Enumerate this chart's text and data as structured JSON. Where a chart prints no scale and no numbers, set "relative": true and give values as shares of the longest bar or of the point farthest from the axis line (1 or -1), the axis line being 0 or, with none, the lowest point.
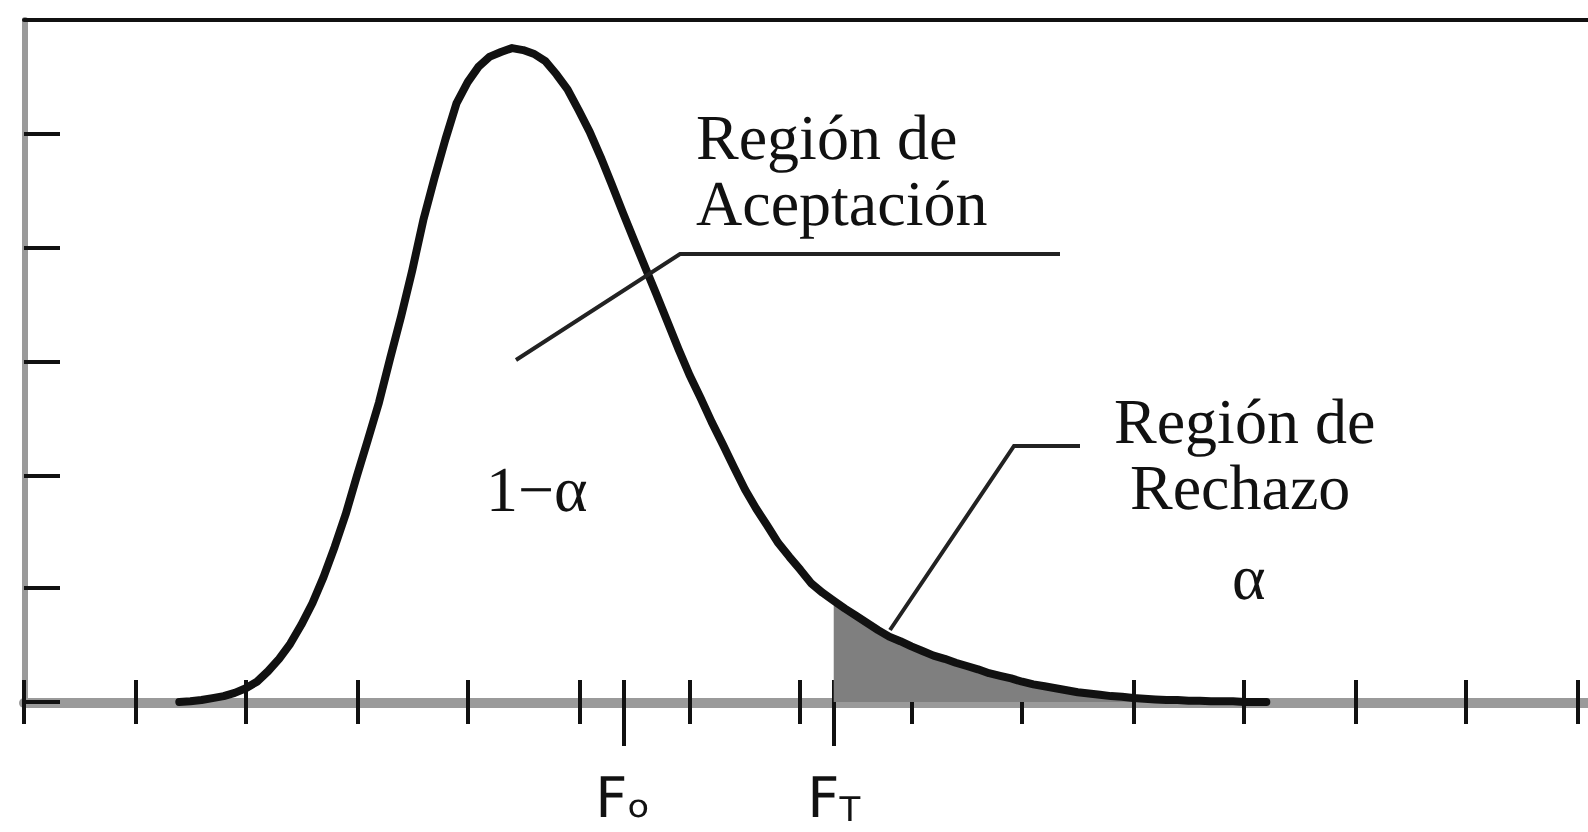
{
  "chart_data": {
    "type": "line",
    "relative": true,
    "tick_labels": "x",
    "categories": [
      null,
      null,
      null,
      null,
      null,
      null,
      null,
      null,
      null,
      null,
      null,
      null,
      null,
      null,
      null,
      null,
      null,
      null,
      null,
      null,
      null,
      null,
      null,
      null,
      null,
      null,
      null,
      null,
      null,
      null,
      null,
      null,
      null,
      null,
      null,
      null,
      null,
      null,
      null,
      null,
      null,
      null,
      null,
      null,
      null,
      null,
      null,
      null,
      null,
      null,
      null,
      null,
      null,
      null,
      "Fₒ",
      null,
      null,
      null,
      null,
      null,
      null,
      null,
      null,
      null,
      null,
      null,
      null,
      null,
      null,
      null,
      null,
      null,
      null,
      "F$_{T}$",
      null,
      null,
      null,
      null,
      null,
      null,
      null,
      null,
      null,
      null,
      null,
      null,
      null,
      null,
      null,
      null,
      null,
      null,
      null,
      null,
      null,
      null,
      null,
      null,
      null,
      null,
      null,
      null,
      null,
      null,
      null,
      null,
      null,
      null,
      null,
      null,
      null,
      null,
      null,
      null,
      null,
      null,
      null,
      null,
      null,
      null,
      null,
      null,
      null,
      null,
      null,
      null,
      null,
      null,
      null,
      null,
      null,
      null,
      null,
      null,
      null,
      null,
      null,
      null,
      null,
      null,
      null,
      null
    ],
    "series": [
      {
        "color": "#111111",
        "values": [
          null,
          null,
          null,
          null,
          null,
          null,
          null,
          null,
          null,
          null,
          null,
          null,
          null,
          null,
          0,
          0.001,
          0.003,
          0.006,
          0.009,
          0.014,
          0.021,
          0.031,
          0.047,
          0.066,
          0.089,
          0.118,
          0.151,
          0.191,
          0.237,
          0.287,
          0.345,
          0.401,
          0.458,
          0.525,
          0.59,
          0.66,
          0.737,
          0.801,
          0.861,
          0.916,
          0.948,
          0.972,
          0.987,
          0.994,
          1,
          0.997,
          0.991,
          0.98,
          0.96,
          0.937,
          0.905,
          0.872,
          0.833,
          0.791,
          0.748,
          0.706,
          0.665,
          0.624,
          0.582,
          0.54,
          0.5,
          0.465,
          0.428,
          0.394,
          0.359,
          0.325,
          0.296,
          0.27,
          0.243,
          0.222,
          0.202,
          0.181,
          0.167,
          0.155,
          0.143,
          0.132,
          0.121,
          0.11,
          0.1,
          0.093,
          0.085,
          0.078,
          0.071,
          0.066,
          0.06,
          0.055,
          0.05,
          0.044,
          0.04,
          0.036,
          0.031,
          0.027,
          0.024,
          0.021,
          0.018,
          0.015,
          0.013,
          0.011,
          0.009,
          0.008,
          0.006,
          0.005,
          0.004,
          0.003,
          0.003,
          0.002,
          0.002,
          0.001,
          0.001,
          0.001,
          0,
          0,
          0,
          null,
          null,
          null,
          null,
          null,
          null,
          null,
          null,
          null,
          null,
          null,
          null,
          null,
          null,
          null,
          null,
          null,
          null,
          null,
          null,
          null,
          null,
          null,
          null,
          null,
          null,
          null,
          null,
          null
        ]
      },
      {
        "type": "area",
        "color": "#7f7f7f",
        "values": [
          null,
          null,
          null,
          null,
          null,
          null,
          null,
          null,
          null,
          null,
          null,
          null,
          null,
          null,
          null,
          null,
          null,
          null,
          null,
          null,
          null,
          null,
          null,
          null,
          null,
          null,
          null,
          null,
          null,
          null,
          null,
          null,
          null,
          null,
          null,
          null,
          null,
          null,
          null,
          null,
          null,
          null,
          null,
          null,
          null,
          null,
          null,
          null,
          null,
          null,
          null,
          null,
          null,
          null,
          null,
          null,
          null,
          null,
          null,
          null,
          null,
          null,
          null,
          null,
          null,
          null,
          null,
          null,
          null,
          null,
          null,
          null,
          null,
          0.155,
          0.143,
          0.132,
          0.121,
          0.11,
          0.1,
          0.093,
          0.085,
          0.078,
          0.071,
          0.066,
          0.06,
          0.055,
          0.05,
          0.044,
          0.04,
          0.036,
          0.031,
          0.027,
          0.024,
          0.021,
          0.018,
          0.015,
          0.013,
          0.011,
          0.009,
          0.008,
          0.006,
          0.005,
          0.004,
          0.003,
          0.003,
          0.002,
          0.002,
          0.001,
          0.001,
          0.001,
          0,
          0,
          0,
          null,
          null,
          null,
          null,
          null,
          null,
          null,
          null,
          null,
          null,
          null,
          null,
          null,
          null,
          null,
          null,
          null,
          null,
          null,
          null,
          null,
          null,
          null,
          null,
          null,
          null,
          null,
          null,
          null
        ]
      }
    ],
    "annotations": [
      "Región de Aceptación",
      "1−α",
      "Región de Rechazo",
      "α"
    ]
  }
}
